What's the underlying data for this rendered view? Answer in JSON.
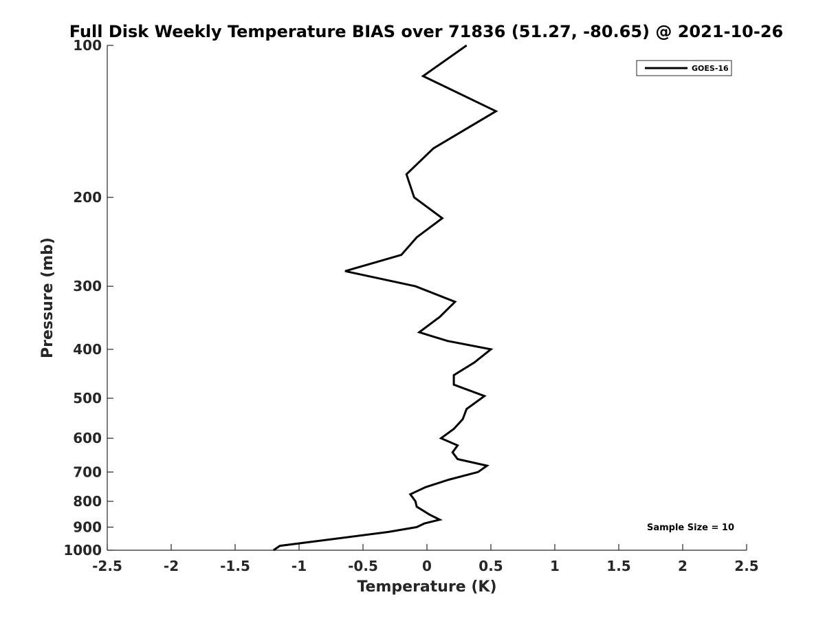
{
  "chart_data": {
    "type": "line",
    "title": "Full Disk Weekly Temperature BIAS over 71836 (51.27, -80.65) @ 2021-10-26",
    "xlabel": "Temperature (K)",
    "ylabel": "Pressure (mb)",
    "xlim": [
      -2.5,
      2.5
    ],
    "ylim": [
      100,
      1000
    ],
    "y_scale": "log",
    "y_reversed": true,
    "x_ticks": [
      "-2.5",
      "-2",
      "-1.5",
      "-1",
      "-0.5",
      "0",
      "0.5",
      "1",
      "1.5",
      "2",
      "2.5"
    ],
    "y_ticks": [
      "100",
      "200",
      "300",
      "400",
      "500",
      "600",
      "700",
      "800",
      "900",
      "1000"
    ],
    "grid": false,
    "legend_position": "top-right",
    "series": [
      {
        "name": "GOES-16",
        "color": "#000000",
        "points": [
          {
            "x": 0.31,
            "p": 100
          },
          {
            "x": -0.03,
            "p": 115
          },
          {
            "x": 0.54,
            "p": 135
          },
          {
            "x": 0.05,
            "p": 160
          },
          {
            "x": -0.16,
            "p": 180
          },
          {
            "x": -0.1,
            "p": 200
          },
          {
            "x": 0.12,
            "p": 220
          },
          {
            "x": -0.08,
            "p": 240
          },
          {
            "x": -0.2,
            "p": 260
          },
          {
            "x": -0.64,
            "p": 280
          },
          {
            "x": -0.09,
            "p": 300
          },
          {
            "x": 0.22,
            "p": 322
          },
          {
            "x": 0.1,
            "p": 345
          },
          {
            "x": -0.06,
            "p": 370
          },
          {
            "x": 0.16,
            "p": 385
          },
          {
            "x": 0.5,
            "p": 400
          },
          {
            "x": 0.37,
            "p": 425
          },
          {
            "x": 0.21,
            "p": 450
          },
          {
            "x": 0.21,
            "p": 470
          },
          {
            "x": 0.45,
            "p": 495
          },
          {
            "x": 0.31,
            "p": 525
          },
          {
            "x": 0.28,
            "p": 550
          },
          {
            "x": 0.21,
            "p": 575
          },
          {
            "x": 0.11,
            "p": 600
          },
          {
            "x": 0.24,
            "p": 620
          },
          {
            "x": 0.2,
            "p": 640
          },
          {
            "x": 0.24,
            "p": 660
          },
          {
            "x": 0.47,
            "p": 680
          },
          {
            "x": 0.4,
            "p": 700
          },
          {
            "x": 0.17,
            "p": 725
          },
          {
            "x": -0.01,
            "p": 750
          },
          {
            "x": -0.13,
            "p": 775
          },
          {
            "x": -0.09,
            "p": 800
          },
          {
            "x": -0.08,
            "p": 820
          },
          {
            "x": 0.02,
            "p": 850
          },
          {
            "x": 0.1,
            "p": 870
          },
          {
            "x": -0.02,
            "p": 885
          },
          {
            "x": -0.08,
            "p": 900
          },
          {
            "x": -0.3,
            "p": 920
          },
          {
            "x": -1.15,
            "p": 980
          },
          {
            "x": -1.2,
            "p": 1000
          }
        ]
      }
    ],
    "annotations": [
      "Sample Size = 10"
    ]
  }
}
